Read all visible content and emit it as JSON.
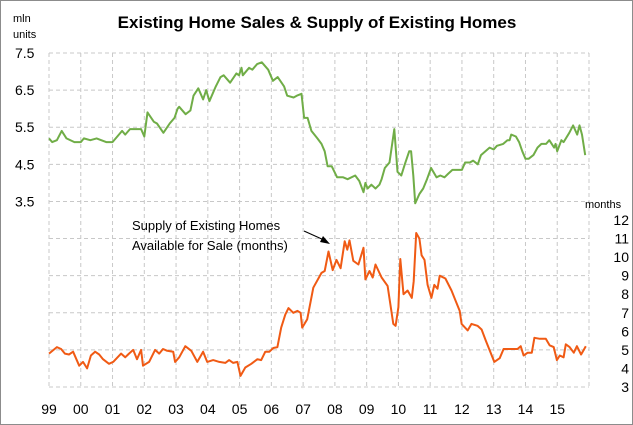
{
  "chart_data": {
    "type": "line",
    "title": "Existing Home Sales & Supply of Existing Homes",
    "left_axis": {
      "unit_label_line1": "mln",
      "unit_label_line2": "units",
      "range": [
        -1.5,
        7.5
      ],
      "tick_labels": [
        "7.5",
        "6.5",
        "5.5",
        "4.5",
        "3.5"
      ],
      "ticks": [
        7.5,
        6.5,
        5.5,
        4.5,
        3.5
      ]
    },
    "right_axis": {
      "unit_label": "months",
      "range": [
        3,
        21
      ],
      "tick_labels": [
        "12",
        "11",
        "10",
        "9",
        "8",
        "7",
        "6",
        "5",
        "4",
        "3"
      ],
      "ticks": [
        12,
        11,
        10,
        9,
        8,
        7,
        6,
        5,
        4,
        3
      ]
    },
    "x_axis": {
      "range": [
        1999,
        2016
      ],
      "tick_labels": [
        "99",
        "00",
        "01",
        "02",
        "03",
        "04",
        "05",
        "06",
        "07",
        "08",
        "09",
        "10",
        "11",
        "12",
        "13",
        "14",
        "15"
      ],
      "ticks": [
        1999,
        2000,
        2001,
        2002,
        2003,
        2004,
        2005,
        2006,
        2007,
        2008,
        2009,
        2010,
        2011,
        2012,
        2013,
        2014,
        2015
      ]
    },
    "grid": true,
    "annotation": {
      "line1": "Supply of Existing Homes",
      "line2": "Available  for Sale (months)"
    },
    "series": [
      {
        "axis": "left",
        "color": "#70ad47",
        "points": [
          [
            1999.0,
            5.2
          ],
          [
            1999.1,
            5.1
          ],
          [
            1999.25,
            5.15
          ],
          [
            1999.4,
            5.4
          ],
          [
            1999.55,
            5.2
          ],
          [
            1999.8,
            5.1
          ],
          [
            2000.0,
            5.1
          ],
          [
            2000.1,
            5.2
          ],
          [
            2000.3,
            5.15
          ],
          [
            2000.5,
            5.2
          ],
          [
            2000.8,
            5.1
          ],
          [
            2001.0,
            5.1
          ],
          [
            2001.3,
            5.4
          ],
          [
            2001.4,
            5.3
          ],
          [
            2001.55,
            5.45
          ],
          [
            2001.9,
            5.45
          ],
          [
            2002.0,
            5.25
          ],
          [
            2002.1,
            5.9
          ],
          [
            2002.3,
            5.65
          ],
          [
            2002.4,
            5.6
          ],
          [
            2002.6,
            5.35
          ],
          [
            2002.8,
            5.6
          ],
          [
            2002.95,
            5.75
          ],
          [
            2003.05,
            6.0
          ],
          [
            2003.1,
            6.05
          ],
          [
            2003.3,
            5.85
          ],
          [
            2003.45,
            5.95
          ],
          [
            2003.55,
            6.35
          ],
          [
            2003.7,
            6.55
          ],
          [
            2003.85,
            6.25
          ],
          [
            2003.95,
            6.5
          ],
          [
            2004.05,
            6.2
          ],
          [
            2004.25,
            6.6
          ],
          [
            2004.4,
            6.85
          ],
          [
            2004.5,
            6.9
          ],
          [
            2004.7,
            6.7
          ],
          [
            2004.9,
            6.95
          ],
          [
            2004.98,
            6.9
          ],
          [
            2005.06,
            7.1
          ],
          [
            2005.1,
            6.9
          ],
          [
            2005.3,
            7.1
          ],
          [
            2005.4,
            7.05
          ],
          [
            2005.55,
            7.2
          ],
          [
            2005.7,
            7.25
          ],
          [
            2005.9,
            7.05
          ],
          [
            2006.05,
            6.75
          ],
          [
            2006.2,
            6.85
          ],
          [
            2006.4,
            6.6
          ],
          [
            2006.5,
            6.35
          ],
          [
            2006.7,
            6.3
          ],
          [
            2006.8,
            6.35
          ],
          [
            2006.95,
            6.4
          ],
          [
            2007.03,
            5.75
          ],
          [
            2007.14,
            5.75
          ],
          [
            2007.26,
            5.4
          ],
          [
            2007.45,
            5.2
          ],
          [
            2007.58,
            5.05
          ],
          [
            2007.68,
            4.85
          ],
          [
            2007.77,
            4.45
          ],
          [
            2007.9,
            4.45
          ],
          [
            2008.07,
            4.15
          ],
          [
            2008.26,
            4.15
          ],
          [
            2008.4,
            4.1
          ],
          [
            2008.64,
            4.2
          ],
          [
            2008.77,
            4.05
          ],
          [
            2008.9,
            3.75
          ],
          [
            2008.96,
            4.0
          ],
          [
            2009.03,
            3.85
          ],
          [
            2009.15,
            3.95
          ],
          [
            2009.28,
            3.85
          ],
          [
            2009.4,
            3.95
          ],
          [
            2009.47,
            4.1
          ],
          [
            2009.57,
            4.4
          ],
          [
            2009.72,
            4.55
          ],
          [
            2009.87,
            5.45
          ],
          [
            2009.97,
            4.3
          ],
          [
            2010.09,
            4.2
          ],
          [
            2010.2,
            4.5
          ],
          [
            2010.34,
            4.85
          ],
          [
            2010.4,
            4.85
          ],
          [
            2010.47,
            4.2
          ],
          [
            2010.53,
            3.45
          ],
          [
            2010.66,
            3.7
          ],
          [
            2010.78,
            3.85
          ],
          [
            2010.9,
            4.1
          ],
          [
            2011.03,
            4.4
          ],
          [
            2011.2,
            4.15
          ],
          [
            2011.32,
            4.2
          ],
          [
            2011.45,
            4.15
          ],
          [
            2011.57,
            4.25
          ],
          [
            2011.7,
            4.35
          ],
          [
            2011.9,
            4.35
          ],
          [
            2012.0,
            4.35
          ],
          [
            2012.1,
            4.55
          ],
          [
            2012.25,
            4.55
          ],
          [
            2012.35,
            4.6
          ],
          [
            2012.5,
            4.5
          ],
          [
            2012.6,
            4.75
          ],
          [
            2012.87,
            4.95
          ],
          [
            2013.0,
            4.9
          ],
          [
            2013.1,
            5.0
          ],
          [
            2013.3,
            5.05
          ],
          [
            2013.43,
            5.15
          ],
          [
            2013.5,
            5.15
          ],
          [
            2013.55,
            5.3
          ],
          [
            2013.7,
            5.25
          ],
          [
            2013.8,
            5.1
          ],
          [
            2013.9,
            4.85
          ],
          [
            2014.0,
            4.65
          ],
          [
            2014.1,
            4.65
          ],
          [
            2014.25,
            4.75
          ],
          [
            2014.38,
            4.95
          ],
          [
            2014.5,
            5.05
          ],
          [
            2014.65,
            5.05
          ],
          [
            2014.75,
            5.15
          ],
          [
            2014.9,
            4.95
          ],
          [
            2014.95,
            5.05
          ],
          [
            2015.0,
            4.85
          ],
          [
            2015.13,
            5.15
          ],
          [
            2015.2,
            5.1
          ],
          [
            2015.38,
            5.35
          ],
          [
            2015.5,
            5.55
          ],
          [
            2015.63,
            5.3
          ],
          [
            2015.7,
            5.55
          ],
          [
            2015.78,
            5.3
          ],
          [
            2015.88,
            4.75
          ]
        ]
      },
      {
        "axis": "right",
        "color": "#f05a14",
        "points": [
          [
            1999.0,
            4.8
          ],
          [
            1999.25,
            5.15
          ],
          [
            1999.38,
            5.05
          ],
          [
            1999.5,
            4.8
          ],
          [
            1999.63,
            4.75
          ],
          [
            1999.76,
            4.9
          ],
          [
            1999.95,
            4.15
          ],
          [
            2000.07,
            4.35
          ],
          [
            2000.2,
            4.0
          ],
          [
            2000.32,
            4.7
          ],
          [
            2000.45,
            4.9
          ],
          [
            2000.58,
            4.75
          ],
          [
            2000.7,
            4.5
          ],
          [
            2000.89,
            4.25
          ],
          [
            2001.02,
            4.35
          ],
          [
            2001.27,
            4.8
          ],
          [
            2001.4,
            4.6
          ],
          [
            2001.52,
            4.8
          ],
          [
            2001.65,
            5.0
          ],
          [
            2001.77,
            4.5
          ],
          [
            2001.9,
            5.0
          ],
          [
            2001.96,
            4.15
          ],
          [
            2002.15,
            4.35
          ],
          [
            2002.34,
            5.0
          ],
          [
            2002.47,
            4.8
          ],
          [
            2002.59,
            5.05
          ],
          [
            2002.72,
            4.95
          ],
          [
            2002.91,
            4.9
          ],
          [
            2002.97,
            4.35
          ],
          [
            2003.1,
            4.6
          ],
          [
            2003.29,
            5.2
          ],
          [
            2003.48,
            4.95
          ],
          [
            2003.67,
            4.35
          ],
          [
            2003.85,
            4.9
          ],
          [
            2003.98,
            4.35
          ],
          [
            2004.17,
            4.45
          ],
          [
            2004.36,
            4.35
          ],
          [
            2004.55,
            4.3
          ],
          [
            2004.67,
            4.45
          ],
          [
            2004.8,
            4.3
          ],
          [
            2004.93,
            4.35
          ],
          [
            2005.03,
            3.6
          ],
          [
            2005.18,
            4.05
          ],
          [
            2005.37,
            4.25
          ],
          [
            2005.56,
            4.5
          ],
          [
            2005.68,
            4.45
          ],
          [
            2005.81,
            4.9
          ],
          [
            2005.94,
            4.9
          ],
          [
            2006.06,
            5.1
          ],
          [
            2006.19,
            5.15
          ],
          [
            2006.31,
            6.2
          ],
          [
            2006.44,
            6.9
          ],
          [
            2006.54,
            7.25
          ],
          [
            2006.69,
            7.0
          ],
          [
            2006.82,
            7.1
          ],
          [
            2006.92,
            7.0
          ],
          [
            2006.97,
            6.2
          ],
          [
            2007.13,
            6.65
          ],
          [
            2007.32,
            8.35
          ],
          [
            2007.58,
            9.15
          ],
          [
            2007.68,
            9.25
          ],
          [
            2007.8,
            10.3
          ],
          [
            2007.93,
            9.3
          ],
          [
            2008.05,
            9.85
          ],
          [
            2008.18,
            9.4
          ],
          [
            2008.31,
            10.85
          ],
          [
            2008.39,
            10.4
          ],
          [
            2008.46,
            10.9
          ],
          [
            2008.58,
            9.8
          ],
          [
            2008.74,
            9.6
          ],
          [
            2008.9,
            10.5
          ],
          [
            2008.96,
            8.8
          ],
          [
            2009.09,
            9.25
          ],
          [
            2009.19,
            8.9
          ],
          [
            2009.28,
            9.6
          ],
          [
            2009.47,
            8.9
          ],
          [
            2009.66,
            8.45
          ],
          [
            2009.84,
            6.4
          ],
          [
            2009.91,
            6.3
          ],
          [
            2010.0,
            7.3
          ],
          [
            2010.06,
            9.9
          ],
          [
            2010.16,
            8.0
          ],
          [
            2010.29,
            8.2
          ],
          [
            2010.42,
            7.8
          ],
          [
            2010.48,
            8.7
          ],
          [
            2010.56,
            11.3
          ],
          [
            2010.66,
            11.0
          ],
          [
            2010.73,
            10.1
          ],
          [
            2010.82,
            9.85
          ],
          [
            2010.92,
            8.5
          ],
          [
            2011.04,
            7.8
          ],
          [
            2011.13,
            8.5
          ],
          [
            2011.23,
            8.3
          ],
          [
            2011.3,
            9.0
          ],
          [
            2011.48,
            8.85
          ],
          [
            2011.67,
            8.2
          ],
          [
            2011.8,
            7.65
          ],
          [
            2011.93,
            7.1
          ],
          [
            2011.99,
            6.4
          ],
          [
            2012.18,
            6.05
          ],
          [
            2012.3,
            6.4
          ],
          [
            2012.49,
            6.3
          ],
          [
            2012.62,
            6.1
          ],
          [
            2012.75,
            5.5
          ],
          [
            2013.02,
            4.35
          ],
          [
            2013.19,
            4.55
          ],
          [
            2013.31,
            5.05
          ],
          [
            2013.5,
            5.05
          ],
          [
            2013.75,
            5.05
          ],
          [
            2013.85,
            5.2
          ],
          [
            2013.94,
            4.7
          ],
          [
            2014.07,
            4.85
          ],
          [
            2014.2,
            4.85
          ],
          [
            2014.28,
            5.65
          ],
          [
            2014.45,
            5.6
          ],
          [
            2014.64,
            5.6
          ],
          [
            2014.76,
            5.25
          ],
          [
            2014.89,
            5.15
          ],
          [
            2014.99,
            4.45
          ],
          [
            2015.08,
            4.7
          ],
          [
            2015.2,
            4.6
          ],
          [
            2015.27,
            5.3
          ],
          [
            2015.39,
            5.15
          ],
          [
            2015.52,
            4.85
          ],
          [
            2015.62,
            5.2
          ],
          [
            2015.75,
            4.75
          ],
          [
            2015.9,
            5.2
          ]
        ]
      }
    ]
  }
}
